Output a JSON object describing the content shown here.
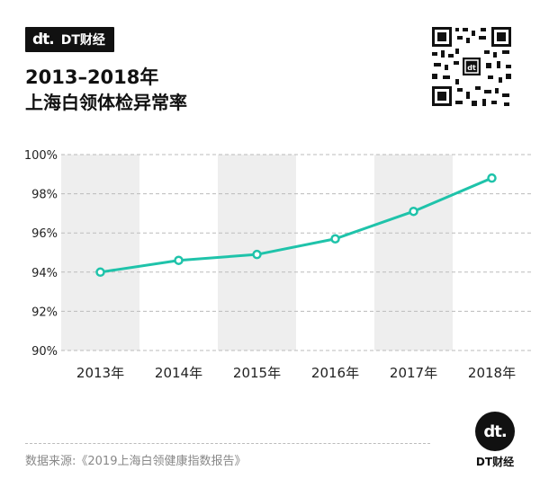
{
  "brand": {
    "mark": "dt.",
    "name": "DT财经"
  },
  "title": {
    "line1": "2013–2018年",
    "line2": "上海白领体检异常率"
  },
  "source": "数据来源:《2019上海白领健康指数报告》",
  "colors": {
    "line": "#1fc3aa",
    "band": "#eeeeee",
    "grid": "#bbbbbb",
    "text": "#222222"
  },
  "chart_data": {
    "type": "line",
    "categories": [
      "2013年",
      "2014年",
      "2015年",
      "2016年",
      "2017年",
      "2018年"
    ],
    "series": [
      {
        "values": [
          94.0,
          94.6,
          94.9,
          95.7,
          97.1,
          98.8
        ]
      }
    ],
    "ylim": [
      90,
      100
    ],
    "yticks": [
      "90%",
      "92%",
      "94%",
      "96%",
      "98%",
      "100%"
    ],
    "xlabel": "",
    "ylabel": "",
    "grid": true,
    "legend": "none"
  }
}
